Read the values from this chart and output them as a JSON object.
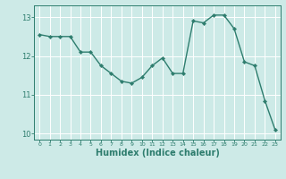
{
  "x": [
    0,
    1,
    2,
    3,
    4,
    5,
    6,
    7,
    8,
    9,
    10,
    11,
    12,
    13,
    14,
    15,
    16,
    17,
    18,
    19,
    20,
    21,
    22,
    23
  ],
  "y": [
    12.55,
    12.5,
    12.5,
    12.5,
    12.1,
    12.1,
    11.75,
    11.55,
    11.35,
    11.3,
    11.45,
    11.75,
    11.95,
    11.55,
    11.55,
    12.9,
    12.85,
    13.05,
    13.05,
    12.7,
    11.85,
    11.75,
    10.85,
    10.1
  ],
  "line_color": "#2e7d6e",
  "marker": "D",
  "markersize": 2.2,
  "linewidth": 1.0,
  "xlabel": "Humidex (Indice chaleur)",
  "xlabel_fontsize": 7,
  "bg_color": "#cdeae7",
  "grid_color": "#ffffff",
  "tick_color": "#2e7d6e",
  "label_color": "#2e7d6e",
  "xlim": [
    -0.5,
    23.5
  ],
  "ylim": [
    9.85,
    13.3
  ],
  "yticks": [
    10,
    11,
    12,
    13
  ],
  "xticks": [
    0,
    1,
    2,
    3,
    4,
    5,
    6,
    7,
    8,
    9,
    10,
    11,
    12,
    13,
    14,
    15,
    16,
    17,
    18,
    19,
    20,
    21,
    22,
    23
  ]
}
